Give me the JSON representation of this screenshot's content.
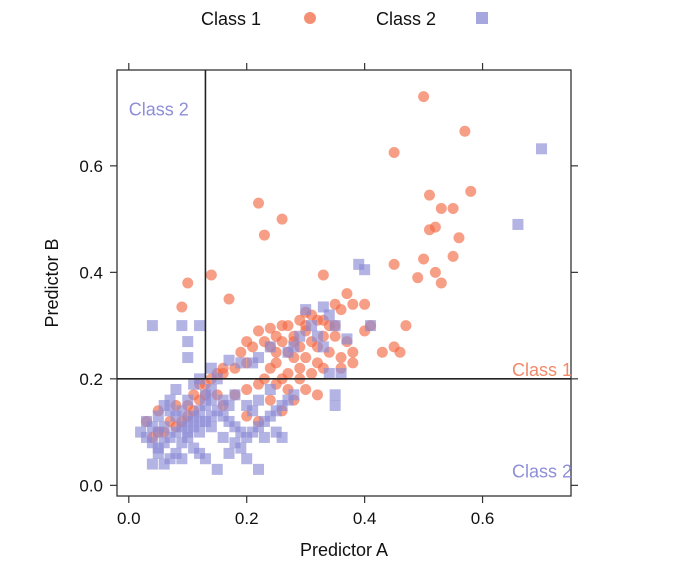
{
  "chart_data": {
    "type": "scatter",
    "xlabel": "Predictor A",
    "ylabel": "Predictor B",
    "xlim": [
      -0.02,
      0.75
    ],
    "ylim": [
      -0.02,
      0.78
    ],
    "xticks": [
      "0.0",
      "0.2",
      "0.4",
      "0.6"
    ],
    "yticks": [
      "0.0",
      "0.2",
      "0.4",
      "0.6"
    ],
    "grid": false,
    "legend_position": "top",
    "partition": {
      "x_split": 0.13,
      "y_split": 0.2
    },
    "region_labels": [
      {
        "text": "Class 2",
        "color": "#8f8fd8",
        "x": 0.0,
        "y": 0.695
      },
      {
        "text": "Class 1",
        "color": "#f08a6a",
        "x": 0.65,
        "y": 0.205
      },
      {
        "text": "Class 2",
        "color": "#8f8fd8",
        "x": 0.65,
        "y": 0.015
      }
    ],
    "series": [
      {
        "name": "Class 1",
        "marker": "circle",
        "color": "#f26a45",
        "points": [
          [
            0.5,
            0.73
          ],
          [
            0.57,
            0.665
          ],
          [
            0.45,
            0.625
          ],
          [
            0.58,
            0.552
          ],
          [
            0.51,
            0.545
          ],
          [
            0.53,
            0.52
          ],
          [
            0.55,
            0.52
          ],
          [
            0.52,
            0.485
          ],
          [
            0.51,
            0.48
          ],
          [
            0.56,
            0.465
          ],
          [
            0.22,
            0.53
          ],
          [
            0.26,
            0.5
          ],
          [
            0.23,
            0.47
          ],
          [
            0.45,
            0.415
          ],
          [
            0.5,
            0.425
          ],
          [
            0.52,
            0.4
          ],
          [
            0.49,
            0.39
          ],
          [
            0.53,
            0.38
          ],
          [
            0.55,
            0.43
          ],
          [
            0.1,
            0.38
          ],
          [
            0.14,
            0.395
          ],
          [
            0.33,
            0.395
          ],
          [
            0.17,
            0.35
          ],
          [
            0.09,
            0.335
          ],
          [
            0.3,
            0.325
          ],
          [
            0.35,
            0.34
          ],
          [
            0.37,
            0.36
          ],
          [
            0.38,
            0.34
          ],
          [
            0.36,
            0.33
          ],
          [
            0.4,
            0.34
          ],
          [
            0.35,
            0.3
          ],
          [
            0.33,
            0.31
          ],
          [
            0.34,
            0.3
          ],
          [
            0.32,
            0.31
          ],
          [
            0.22,
            0.29
          ],
          [
            0.24,
            0.295
          ],
          [
            0.26,
            0.3
          ],
          [
            0.28,
            0.28
          ],
          [
            0.3,
            0.29
          ],
          [
            0.31,
            0.27
          ],
          [
            0.32,
            0.26
          ],
          [
            0.29,
            0.26
          ],
          [
            0.25,
            0.25
          ],
          [
            0.27,
            0.25
          ],
          [
            0.28,
            0.24
          ],
          [
            0.3,
            0.24
          ],
          [
            0.32,
            0.23
          ],
          [
            0.33,
            0.22
          ],
          [
            0.29,
            0.22
          ],
          [
            0.27,
            0.21
          ],
          [
            0.26,
            0.2
          ],
          [
            0.25,
            0.23
          ],
          [
            0.24,
            0.22
          ],
          [
            0.23,
            0.2
          ],
          [
            0.22,
            0.19
          ],
          [
            0.2,
            0.18
          ],
          [
            0.18,
            0.17
          ],
          [
            0.16,
            0.15
          ],
          [
            0.15,
            0.17
          ],
          [
            0.13,
            0.19
          ],
          [
            0.26,
            0.14
          ],
          [
            0.24,
            0.16
          ],
          [
            0.2,
            0.13
          ],
          [
            0.22,
            0.12
          ],
          [
            0.28,
            0.16
          ],
          [
            0.3,
            0.18
          ],
          [
            0.36,
            0.24
          ],
          [
            0.38,
            0.23
          ],
          [
            0.35,
            0.28
          ],
          [
            0.4,
            0.29
          ],
          [
            0.41,
            0.3
          ],
          [
            0.38,
            0.25
          ],
          [
            0.43,
            0.25
          ],
          [
            0.45,
            0.26
          ],
          [
            0.47,
            0.3
          ],
          [
            0.46,
            0.25
          ],
          [
            0.36,
            0.22
          ],
          [
            0.2,
            0.23
          ],
          [
            0.18,
            0.22
          ],
          [
            0.16,
            0.21
          ],
          [
            0.14,
            0.2
          ],
          [
            0.13,
            0.17
          ],
          [
            0.12,
            0.16
          ],
          [
            0.11,
            0.14
          ],
          [
            0.1,
            0.13
          ],
          [
            0.09,
            0.12
          ],
          [
            0.08,
            0.11
          ],
          [
            0.07,
            0.12
          ],
          [
            0.06,
            0.1
          ],
          [
            0.05,
            0.1
          ],
          [
            0.04,
            0.09
          ],
          [
            0.03,
            0.12
          ],
          [
            0.05,
            0.14
          ],
          [
            0.08,
            0.15
          ],
          [
            0.1,
            0.15
          ],
          [
            0.11,
            0.17
          ],
          [
            0.12,
            0.19
          ],
          [
            0.15,
            0.21
          ],
          [
            0.16,
            0.22
          ],
          [
            0.19,
            0.25
          ],
          [
            0.21,
            0.26
          ],
          [
            0.23,
            0.27
          ],
          [
            0.25,
            0.28
          ],
          [
            0.27,
            0.3
          ],
          [
            0.29,
            0.31
          ],
          [
            0.31,
            0.32
          ],
          [
            0.32,
            0.17
          ],
          [
            0.25,
            0.19
          ],
          [
            0.27,
            0.18
          ],
          [
            0.29,
            0.2
          ],
          [
            0.31,
            0.21
          ],
          [
            0.33,
            0.28
          ],
          [
            0.34,
            0.25
          ],
          [
            0.37,
            0.27
          ],
          [
            0.24,
            0.26
          ],
          [
            0.2,
            0.27
          ],
          [
            0.3,
            0.3
          ],
          [
            0.28,
            0.27
          ],
          [
            0.26,
            0.27
          ]
        ]
      },
      {
        "name": "Class 2",
        "marker": "square",
        "color": "#8a8ad6",
        "points": [
          [
            0.7,
            0.632
          ],
          [
            0.66,
            0.49
          ],
          [
            0.39,
            0.415
          ],
          [
            0.4,
            0.405
          ],
          [
            0.41,
            0.3
          ],
          [
            0.37,
            0.275
          ],
          [
            0.35,
            0.3
          ],
          [
            0.34,
            0.32
          ],
          [
            0.33,
            0.335
          ],
          [
            0.3,
            0.33
          ],
          [
            0.31,
            0.3
          ],
          [
            0.32,
            0.28
          ],
          [
            0.29,
            0.28
          ],
          [
            0.28,
            0.26
          ],
          [
            0.27,
            0.25
          ],
          [
            0.36,
            0.21
          ],
          [
            0.34,
            0.21
          ],
          [
            0.35,
            0.17
          ],
          [
            0.35,
            0.15
          ],
          [
            0.33,
            0.26
          ],
          [
            0.24,
            0.26
          ],
          [
            0.22,
            0.24
          ],
          [
            0.21,
            0.23
          ],
          [
            0.19,
            0.23
          ],
          [
            0.17,
            0.235
          ],
          [
            0.12,
            0.3
          ],
          [
            0.09,
            0.3
          ],
          [
            0.1,
            0.27
          ],
          [
            0.1,
            0.24
          ],
          [
            0.04,
            0.3
          ],
          [
            0.14,
            0.22
          ],
          [
            0.15,
            0.2
          ],
          [
            0.14,
            0.18
          ],
          [
            0.13,
            0.17
          ],
          [
            0.12,
            0.2
          ],
          [
            0.11,
            0.19
          ],
          [
            0.08,
            0.18
          ],
          [
            0.07,
            0.16
          ],
          [
            0.06,
            0.15
          ],
          [
            0.05,
            0.13
          ],
          [
            0.03,
            0.12
          ],
          [
            0.02,
            0.1
          ],
          [
            0.03,
            0.09
          ],
          [
            0.04,
            0.08
          ],
          [
            0.05,
            0.07
          ],
          [
            0.06,
            0.08
          ],
          [
            0.07,
            0.09
          ],
          [
            0.08,
            0.1
          ],
          [
            0.09,
            0.11
          ],
          [
            0.1,
            0.12
          ],
          [
            0.11,
            0.13
          ],
          [
            0.12,
            0.14
          ],
          [
            0.13,
            0.15
          ],
          [
            0.14,
            0.16
          ],
          [
            0.15,
            0.14
          ],
          [
            0.16,
            0.13
          ],
          [
            0.17,
            0.12
          ],
          [
            0.18,
            0.11
          ],
          [
            0.19,
            0.1
          ],
          [
            0.2,
            0.09
          ],
          [
            0.21,
            0.1
          ],
          [
            0.22,
            0.11
          ],
          [
            0.23,
            0.12
          ],
          [
            0.24,
            0.13
          ],
          [
            0.25,
            0.14
          ],
          [
            0.26,
            0.15
          ],
          [
            0.27,
            0.16
          ],
          [
            0.28,
            0.17
          ],
          [
            0.26,
            0.09
          ],
          [
            0.25,
            0.1
          ],
          [
            0.23,
            0.09
          ],
          [
            0.2,
            0.05
          ],
          [
            0.17,
            0.06
          ],
          [
            0.15,
            0.03
          ],
          [
            0.13,
            0.05
          ],
          [
            0.12,
            0.06
          ],
          [
            0.11,
            0.07
          ],
          [
            0.09,
            0.05
          ],
          [
            0.08,
            0.06
          ],
          [
            0.06,
            0.04
          ],
          [
            0.04,
            0.04
          ],
          [
            0.05,
            0.06
          ],
          [
            0.07,
            0.05
          ],
          [
            0.09,
            0.08
          ],
          [
            0.1,
            0.09
          ],
          [
            0.12,
            0.1
          ],
          [
            0.14,
            0.11
          ],
          [
            0.16,
            0.09
          ],
          [
            0.18,
            0.08
          ],
          [
            0.19,
            0.07
          ],
          [
            0.22,
            0.03
          ],
          [
            0.13,
            0.12
          ],
          [
            0.14,
            0.13
          ],
          [
            0.16,
            0.16
          ],
          [
            0.17,
            0.15
          ],
          [
            0.18,
            0.17
          ],
          [
            0.2,
            0.15
          ],
          [
            0.21,
            0.14
          ],
          [
            0.22,
            0.16
          ],
          [
            0.1,
            0.16
          ],
          [
            0.09,
            0.14
          ],
          [
            0.08,
            0.13
          ],
          [
            0.06,
            0.11
          ],
          [
            0.05,
            0.1
          ],
          [
            0.04,
            0.11
          ],
          [
            0.1,
            0.1
          ],
          [
            0.11,
            0.11
          ],
          [
            0.12,
            0.12
          ],
          [
            0.07,
            0.14
          ],
          [
            0.24,
            0.18
          ]
        ]
      }
    ]
  }
}
